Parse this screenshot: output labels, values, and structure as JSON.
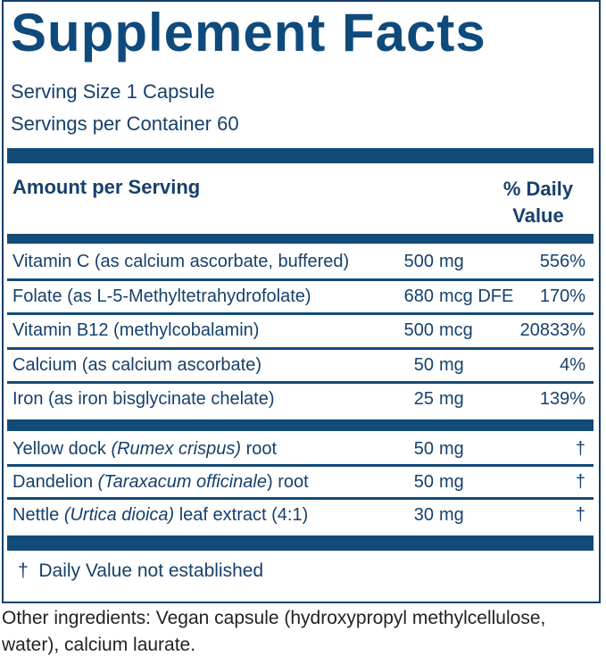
{
  "title": "Supplement Facts",
  "serving_size": "Serving Size 1 Capsule",
  "servings_per_container": "Servings per Container 60",
  "header": {
    "amount": "Amount per Serving",
    "daily_value": "% Daily Value"
  },
  "sections": [
    {
      "rows": [
        {
          "name": [
            {
              "text": "Vitamin C (as calcium ascorbate, buffered)"
            }
          ],
          "amount": 500,
          "unit": "mg",
          "daily_value": "556%"
        },
        {
          "name": [
            {
              "text": "Folate (as L-5-Methyltetrahydrofolate)"
            }
          ],
          "amount": 680,
          "unit": "mcg DFE",
          "daily_value": "170%"
        },
        {
          "name": [
            {
              "text": "Vitamin B12 (methylcobalamin)"
            }
          ],
          "amount": 500,
          "unit": "mcg",
          "daily_value": "20833%"
        },
        {
          "name": [
            {
              "text": "Calcium (as calcium ascorbate)"
            }
          ],
          "amount": 50,
          "unit": "mg",
          "daily_value": "4%"
        },
        {
          "name": [
            {
              "text": "Iron (as iron bisglycinate chelate)"
            }
          ],
          "amount": 25,
          "unit": "mg",
          "daily_value": "139%"
        }
      ]
    },
    {
      "rows": [
        {
          "name": [
            {
              "text": "Yellow dock "
            },
            {
              "text": "(Rumex crispus)",
              "italic": true
            },
            {
              "text": " root"
            }
          ],
          "amount": 50,
          "unit": "mg",
          "daily_value": "†"
        },
        {
          "name": [
            {
              "text": "Dandelion "
            },
            {
              "text": "(Taraxacum officinale",
              "italic": true
            },
            {
              "text": ") root"
            }
          ],
          "amount": 50,
          "unit": "mg",
          "daily_value": "†"
        },
        {
          "name": [
            {
              "text": "Nettle "
            },
            {
              "text": "(Urtica dioica)",
              "italic": true
            },
            {
              "text": " leaf extract (4:1)"
            }
          ],
          "amount": 30,
          "unit": "mg",
          "daily_value": "†"
        }
      ]
    }
  ],
  "footnote": "†  Daily Value not established",
  "other_ingredients": "Other ingredients: Vegan capsule (hydroxypropyl methylcellulose, water), calcium laurate."
}
